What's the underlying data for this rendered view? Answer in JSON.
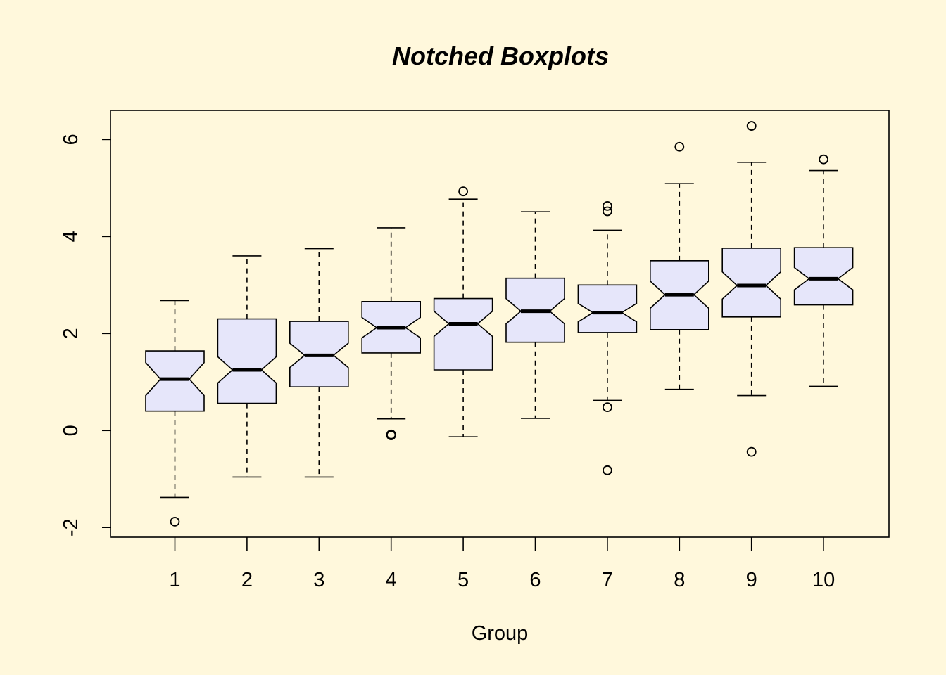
{
  "chart_data": {
    "type": "boxplot",
    "notched": true,
    "title": "Notched Boxplots",
    "xlabel": "Group",
    "ylabel": "",
    "ylim": [
      -2.2,
      6.6
    ],
    "yticks": [
      -2,
      0,
      2,
      4,
      6
    ],
    "box_fill": "#E6E6FA",
    "background": "#FFF8DC",
    "categories": [
      "1",
      "2",
      "3",
      "4",
      "5",
      "6",
      "7",
      "8",
      "9",
      "10"
    ],
    "groups": [
      {
        "name": "1",
        "whisker_low": -1.38,
        "q1": 0.4,
        "median": 1.06,
        "q3": 1.64,
        "whisker_high": 2.68,
        "notch": [
          0.72,
          1.4
        ],
        "outliers": [
          -1.88
        ]
      },
      {
        "name": "2",
        "whisker_low": -0.96,
        "q1": 0.56,
        "median": 1.25,
        "q3": 2.3,
        "whisker_high": 3.6,
        "notch": [
          0.98,
          1.52
        ],
        "outliers": []
      },
      {
        "name": "3",
        "whisker_low": -0.96,
        "q1": 0.9,
        "median": 1.55,
        "q3": 2.25,
        "whisker_high": 3.75,
        "notch": [
          1.3,
          1.8
        ],
        "outliers": []
      },
      {
        "name": "4",
        "whisker_low": 0.24,
        "q1": 1.6,
        "median": 2.12,
        "q3": 2.66,
        "whisker_high": 4.18,
        "notch": [
          1.91,
          2.33
        ],
        "outliers": [
          -0.08,
          -0.1
        ]
      },
      {
        "name": "5",
        "whisker_low": -0.13,
        "q1": 1.25,
        "median": 2.2,
        "q3": 2.72,
        "whisker_high": 4.77,
        "notch": [
          1.94,
          2.46
        ],
        "outliers": [
          4.93
        ]
      },
      {
        "name": "6",
        "whisker_low": 0.25,
        "q1": 1.82,
        "median": 2.46,
        "q3": 3.14,
        "whisker_high": 4.51,
        "notch": [
          2.2,
          2.72
        ],
        "outliers": []
      },
      {
        "name": "7",
        "whisker_low": 0.62,
        "q1": 2.02,
        "median": 2.43,
        "q3": 3.0,
        "whisker_high": 4.13,
        "notch": [
          2.24,
          2.62
        ],
        "outliers": [
          0.48,
          -0.82,
          4.52,
          4.63
        ]
      },
      {
        "name": "8",
        "whisker_low": 0.85,
        "q1": 2.08,
        "median": 2.8,
        "q3": 3.5,
        "whisker_high": 5.09,
        "notch": [
          2.52,
          3.08
        ],
        "outliers": [
          5.85
        ]
      },
      {
        "name": "9",
        "whisker_low": 0.72,
        "q1": 2.34,
        "median": 2.99,
        "q3": 3.76,
        "whisker_high": 5.53,
        "notch": [
          2.71,
          3.27
        ],
        "outliers": [
          -0.44,
          6.28
        ]
      },
      {
        "name": "10",
        "whisker_low": 0.91,
        "q1": 2.59,
        "median": 3.13,
        "q3": 3.77,
        "whisker_high": 5.36,
        "notch": [
          2.9,
          3.36
        ],
        "outliers": [
          5.59
        ]
      }
    ]
  }
}
